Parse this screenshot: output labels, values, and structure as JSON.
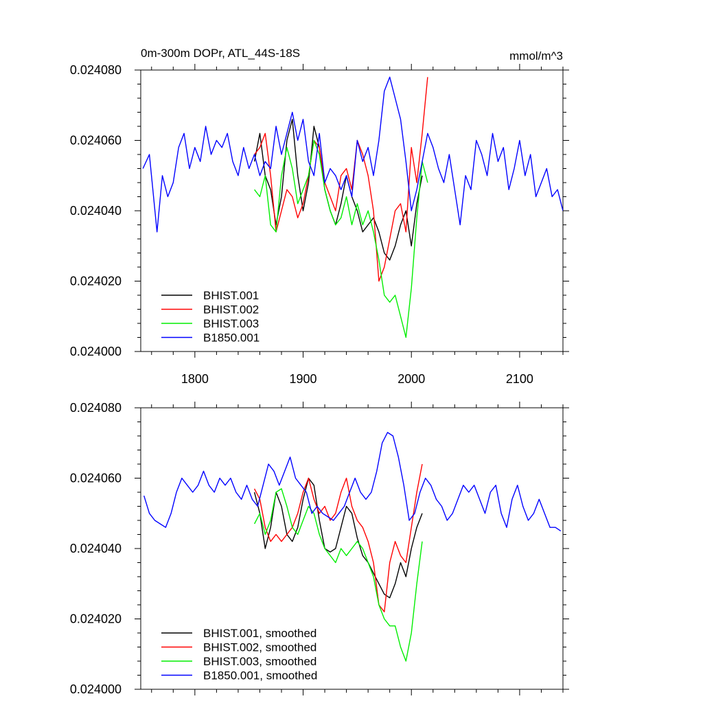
{
  "chart_data": [
    {
      "type": "line",
      "title_left": "0m-300m DOPr, ATL_44S-18S",
      "title_right": "mmol/m^3",
      "xlim": [
        1750,
        2140
      ],
      "ylim": [
        0.024,
        0.02408
      ],
      "yticks": [
        "0.024000",
        "0.024020",
        "0.024040",
        "0.024060",
        "0.024080"
      ],
      "xticks": [
        "1800",
        "1900",
        "2000",
        "2100"
      ],
      "legend_position": "bottom-left",
      "series": [
        {
          "name": "BHIST.001",
          "color": "#000000",
          "x": [
            1855,
            1860,
            1865,
            1870,
            1875,
            1880,
            1885,
            1890,
            1895,
            1900,
            1905,
            1910,
            1915,
            1920,
            1925,
            1930,
            1935,
            1940,
            1945,
            1950,
            1955,
            1960,
            1965,
            1970,
            1975,
            1980,
            1985,
            1990,
            1995,
            2000,
            2005,
            2010
          ],
          "y": [
            0.024054,
            0.024062,
            0.02405,
            0.024046,
            0.024036,
            0.024044,
            0.02406,
            0.024066,
            0.02405,
            0.02404,
            0.024048,
            0.024064,
            0.024058,
            0.024046,
            0.02404,
            0.024036,
            0.024042,
            0.02405,
            0.024044,
            0.02404,
            0.024034,
            0.024036,
            0.024038,
            0.024034,
            0.024028,
            0.024026,
            0.02403,
            0.024036,
            0.02404,
            0.02403,
            0.024042,
            0.02405
          ]
        },
        {
          "name": "BHIST.002",
          "color": "#ff0000",
          "x": [
            1855,
            1860,
            1865,
            1870,
            1875,
            1880,
            1885,
            1890,
            1895,
            1900,
            1905,
            1910,
            1915,
            1920,
            1925,
            1930,
            1935,
            1940,
            1945,
            1950,
            1955,
            1960,
            1965,
            1970,
            1975,
            1980,
            1985,
            1990,
            1995,
            2000,
            2005,
            2010,
            2015
          ],
          "y": [
            0.024056,
            0.024058,
            0.024062,
            0.02405,
            0.024034,
            0.02404,
            0.024046,
            0.024044,
            0.024038,
            0.024042,
            0.02405,
            0.02406,
            0.024058,
            0.024048,
            0.024044,
            0.02404,
            0.02405,
            0.024052,
            0.024046,
            0.02406,
            0.024056,
            0.02405,
            0.02404,
            0.02402,
            0.024024,
            0.024032,
            0.02404,
            0.024042,
            0.024034,
            0.024058,
            0.024048,
            0.024062,
            0.024078
          ]
        },
        {
          "name": "BHIST.003",
          "color": "#00ee00",
          "x": [
            1855,
            1860,
            1865,
            1870,
            1875,
            1880,
            1885,
            1890,
            1895,
            1900,
            1905,
            1910,
            1915,
            1920,
            1925,
            1930,
            1935,
            1940,
            1945,
            1950,
            1955,
            1960,
            1965,
            1970,
            1975,
            1980,
            1985,
            1990,
            1995,
            2000,
            2005,
            2010,
            2015
          ],
          "y": [
            0.024046,
            0.024044,
            0.02405,
            0.024036,
            0.024034,
            0.02405,
            0.024058,
            0.024052,
            0.024042,
            0.024046,
            0.02405,
            0.02406,
            0.024056,
            0.024046,
            0.02404,
            0.024036,
            0.024038,
            0.024044,
            0.024036,
            0.024042,
            0.024036,
            0.02404,
            0.024034,
            0.024026,
            0.024016,
            0.024014,
            0.024016,
            0.02401,
            0.024004,
            0.024018,
            0.024038,
            0.024054,
            0.024048
          ]
        },
        {
          "name": "B1850.001",
          "color": "#0000ff",
          "x": [
            1752,
            1758,
            1765,
            1770,
            1775,
            1780,
            1785,
            1790,
            1795,
            1800,
            1805,
            1810,
            1815,
            1820,
            1825,
            1830,
            1835,
            1840,
            1845,
            1850,
            1855,
            1860,
            1865,
            1870,
            1875,
            1880,
            1885,
            1890,
            1895,
            1900,
            1905,
            1910,
            1915,
            1920,
            1925,
            1930,
            1935,
            1940,
            1945,
            1950,
            1955,
            1960,
            1965,
            1970,
            1975,
            1980,
            1985,
            1990,
            1995,
            2000,
            2005,
            2010,
            2015,
            2020,
            2025,
            2030,
            2035,
            2040,
            2045,
            2050,
            2055,
            2060,
            2065,
            2070,
            2075,
            2080,
            2085,
            2090,
            2095,
            2100,
            2105,
            2110,
            2115,
            2120,
            2125,
            2130,
            2135,
            2140
          ],
          "y": [
            0.024052,
            0.024056,
            0.024034,
            0.02405,
            0.024044,
            0.024048,
            0.024058,
            0.024062,
            0.024052,
            0.024058,
            0.024054,
            0.024064,
            0.024056,
            0.02406,
            0.024058,
            0.024062,
            0.024054,
            0.02405,
            0.024058,
            0.024052,
            0.024056,
            0.02405,
            0.024054,
            0.024052,
            0.024064,
            0.024056,
            0.024062,
            0.024068,
            0.02406,
            0.024066,
            0.024054,
            0.02405,
            0.024062,
            0.024048,
            0.024052,
            0.02405,
            0.024046,
            0.02405,
            0.024044,
            0.02406,
            0.024054,
            0.024058,
            0.02405,
            0.02406,
            0.024074,
            0.024078,
            0.024072,
            0.024066,
            0.024054,
            0.02404,
            0.024046,
            0.024054,
            0.024062,
            0.024058,
            0.024052,
            0.024048,
            0.024056,
            0.024046,
            0.024036,
            0.02405,
            0.024046,
            0.02406,
            0.024056,
            0.02405,
            0.024062,
            0.024054,
            0.024058,
            0.024046,
            0.024052,
            0.02406,
            0.02405,
            0.024056,
            0.024044,
            0.024048,
            0.024052,
            0.024044,
            0.024046,
            0.02404
          ]
        }
      ]
    },
    {
      "type": "line",
      "title_left": "",
      "title_right": "",
      "xlim": [
        1750,
        2140
      ],
      "ylim": [
        0.024,
        0.02408
      ],
      "yticks": [
        "0.024000",
        "0.024020",
        "0.024040",
        "0.024060",
        "0.024080"
      ],
      "xticks": [],
      "legend_position": "bottom-left",
      "series": [
        {
          "name": "BHIST.001, smoothed",
          "color": "#000000",
          "x": [
            1855,
            1860,
            1865,
            1870,
            1875,
            1880,
            1885,
            1890,
            1895,
            1900,
            1905,
            1910,
            1915,
            1920,
            1925,
            1930,
            1935,
            1940,
            1945,
            1950,
            1955,
            1960,
            1965,
            1970,
            1975,
            1980,
            1985,
            1990,
            1995,
            2000,
            2005,
            2010
          ],
          "y": [
            0.024056,
            0.02405,
            0.02404,
            0.024046,
            0.024056,
            0.024052,
            0.024044,
            0.024042,
            0.024046,
            0.024054,
            0.02406,
            0.024058,
            0.024048,
            0.02404,
            0.024039,
            0.02404,
            0.024046,
            0.024052,
            0.02405,
            0.024043,
            0.024038,
            0.024036,
            0.024033,
            0.02403,
            0.024027,
            0.024026,
            0.02403,
            0.024036,
            0.024032,
            0.02404,
            0.024046,
            0.02405
          ]
        },
        {
          "name": "BHIST.002, smoothed",
          "color": "#ff0000",
          "x": [
            1855,
            1860,
            1865,
            1870,
            1875,
            1880,
            1885,
            1890,
            1895,
            1900,
            1905,
            1910,
            1915,
            1920,
            1925,
            1930,
            1935,
            1940,
            1945,
            1950,
            1955,
            1960,
            1965,
            1970,
            1975,
            1980,
            1985,
            1990,
            1995,
            2000,
            2005,
            2010
          ],
          "y": [
            0.024057,
            0.024054,
            0.024046,
            0.024042,
            0.024044,
            0.024042,
            0.024044,
            0.024046,
            0.02405,
            0.024056,
            0.02406,
            0.024054,
            0.02405,
            0.024052,
            0.024048,
            0.02405,
            0.024056,
            0.02406,
            0.024052,
            0.024048,
            0.024046,
            0.024042,
            0.024036,
            0.024024,
            0.024022,
            0.024036,
            0.024042,
            0.024038,
            0.024036,
            0.024046,
            0.024056,
            0.024064
          ]
        },
        {
          "name": "BHIST.003, smoothed",
          "color": "#00ee00",
          "x": [
            1855,
            1860,
            1865,
            1870,
            1875,
            1880,
            1885,
            1890,
            1895,
            1900,
            1905,
            1910,
            1915,
            1920,
            1925,
            1930,
            1935,
            1940,
            1945,
            1950,
            1955,
            1960,
            1965,
            1970,
            1975,
            1980,
            1985,
            1990,
            1995,
            2000,
            2005,
            2010
          ],
          "y": [
            0.024047,
            0.02405,
            0.024044,
            0.024048,
            0.024056,
            0.024057,
            0.024052,
            0.024046,
            0.024044,
            0.024048,
            0.024052,
            0.02405,
            0.024044,
            0.02404,
            0.024038,
            0.024036,
            0.02404,
            0.024038,
            0.02404,
            0.024042,
            0.02404,
            0.024036,
            0.024032,
            0.024024,
            0.02402,
            0.024018,
            0.024018,
            0.024012,
            0.024008,
            0.024016,
            0.02403,
            0.024042
          ]
        },
        {
          "name": "B1850.001, smoothed",
          "color": "#0000ff",
          "x": [
            1753,
            1758,
            1763,
            1768,
            1773,
            1778,
            1783,
            1788,
            1793,
            1798,
            1803,
            1808,
            1813,
            1818,
            1823,
            1828,
            1833,
            1838,
            1843,
            1848,
            1853,
            1858,
            1863,
            1868,
            1873,
            1878,
            1883,
            1888,
            1893,
            1898,
            1903,
            1908,
            1913,
            1918,
            1923,
            1928,
            1933,
            1938,
            1943,
            1948,
            1953,
            1958,
            1963,
            1968,
            1973,
            1978,
            1983,
            1988,
            1993,
            1998,
            2003,
            2008,
            2013,
            2018,
            2023,
            2028,
            2033,
            2038,
            2043,
            2048,
            2053,
            2058,
            2063,
            2068,
            2073,
            2078,
            2083,
            2088,
            2093,
            2098,
            2103,
            2108,
            2113,
            2118,
            2123,
            2128,
            2133,
            2138
          ],
          "y": [
            0.024055,
            0.02405,
            0.024048,
            0.024047,
            0.024046,
            0.02405,
            0.024056,
            0.02406,
            0.024058,
            0.024056,
            0.024058,
            0.024062,
            0.024058,
            0.024056,
            0.02406,
            0.024058,
            0.02406,
            0.024056,
            0.024054,
            0.024058,
            0.024054,
            0.024052,
            0.024058,
            0.024064,
            0.024062,
            0.024058,
            0.024062,
            0.024066,
            0.02406,
            0.024058,
            0.024056,
            0.02405,
            0.024052,
            0.02405,
            0.024049,
            0.024048,
            0.02405,
            0.024052,
            0.024056,
            0.02406,
            0.024056,
            0.024054,
            0.024056,
            0.024062,
            0.02407,
            0.024073,
            0.024072,
            0.024066,
            0.024058,
            0.024048,
            0.02405,
            0.024056,
            0.02406,
            0.024058,
            0.024054,
            0.024052,
            0.024048,
            0.02405,
            0.024054,
            0.024058,
            0.024056,
            0.024058,
            0.024054,
            0.02405,
            0.024056,
            0.024058,
            0.02405,
            0.024046,
            0.024054,
            0.024058,
            0.024052,
            0.024048,
            0.02405,
            0.024054,
            0.02405,
            0.024046,
            0.024046,
            0.024045
          ]
        }
      ]
    }
  ]
}
